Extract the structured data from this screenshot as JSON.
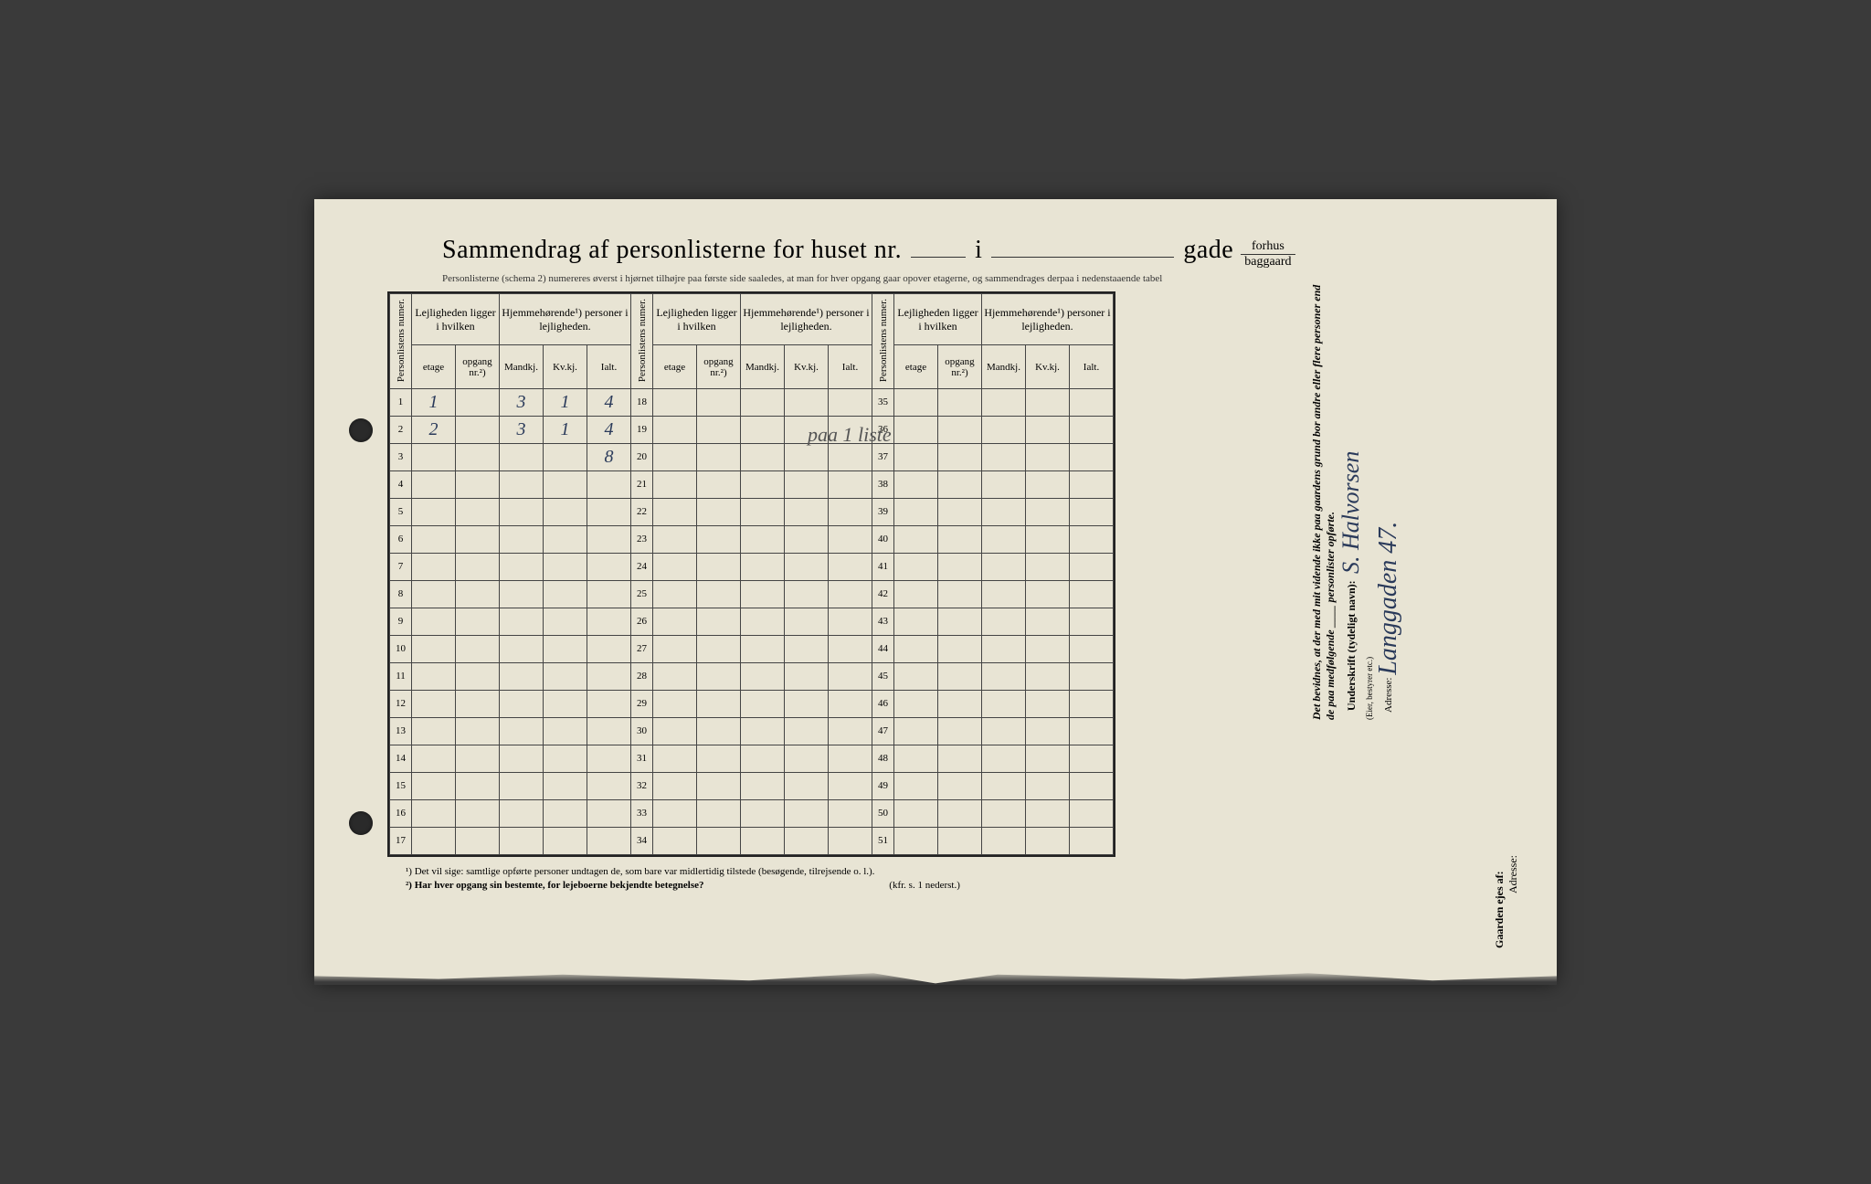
{
  "header": {
    "title_prefix": "Sammendrag af personlisterne for huset nr.",
    "i": "i",
    "gade": "gade",
    "forhus": "forhus",
    "baggaard": "baggaard",
    "subtitle": "Personlisterne (schema 2) numereres øverst i hjørnet tilhøjre paa første side saaledes, at man for hver opgang gaar opover etagerne, og sammendrages derpaa i nedenstaaende tabel"
  },
  "columns": {
    "personlistens_numer": "Personlistens numer.",
    "lejligheden": "Lejligheden ligger i hvilken",
    "hjemmehorende": "Hjemmehørende¹) personer i lejligheden.",
    "etage": "etage",
    "opgang": "opgang nr.²)",
    "mandkj": "Mandkj.",
    "kvkj": "Kv.kj.",
    "ialt": "Ialt."
  },
  "row_numbers_1": [
    1,
    2,
    3,
    4,
    5,
    6,
    7,
    8,
    9,
    10,
    11,
    12,
    13,
    14,
    15,
    16,
    17
  ],
  "row_numbers_2": [
    18,
    19,
    20,
    21,
    22,
    23,
    24,
    25,
    26,
    27,
    28,
    29,
    30,
    31,
    32,
    33,
    34
  ],
  "row_numbers_3": [
    35,
    36,
    37,
    38,
    39,
    40,
    41,
    42,
    43,
    44,
    45,
    46,
    47,
    48,
    49,
    50,
    51
  ],
  "data_rows": {
    "1": {
      "etage": "1",
      "mandkj": "3",
      "kvkj": "1",
      "ialt": "4"
    },
    "2": {
      "etage": "2",
      "mandkj": "3",
      "kvkj": "1",
      "ialt": "4"
    },
    "3": {
      "ialt": "8"
    }
  },
  "handwritten_note": "paa 1 liste",
  "right": {
    "declaration": "Det bevidnes, at der med mit vidende ikke paa gaardens grund bor andre eller flere personer end de paa medfølgende ____ personlister opførte.",
    "underskrift_label": "Underskrift (tydeligt navn):",
    "eier_label": "(Eier, bestyrer etc.)",
    "signature": "S. Halvorsen",
    "adresse_label": "Adresse:",
    "adresse_value": "Langgaden 47."
  },
  "footnotes": {
    "fn1": "¹)  Det vil sige: samtlige opførte personer undtagen de, som bare var midlertidig tilstede (besøgende, tilrejsende o. l.).",
    "fn2": "²)  Har hver opgang sin bestemte, for lejeboerne bekjendte betegnelse?",
    "kfr": "(kfr. s. 1 nederst.)"
  },
  "bottom_right": {
    "gaarden_ejes": "Gaarden ejes af:",
    "adresse": "Adresse:"
  },
  "colors": {
    "paper": "#e8e4d4",
    "ink": "#222222",
    "handwriting": "#2a3a5a",
    "pencil": "#555555",
    "background": "#3a3a3a"
  }
}
